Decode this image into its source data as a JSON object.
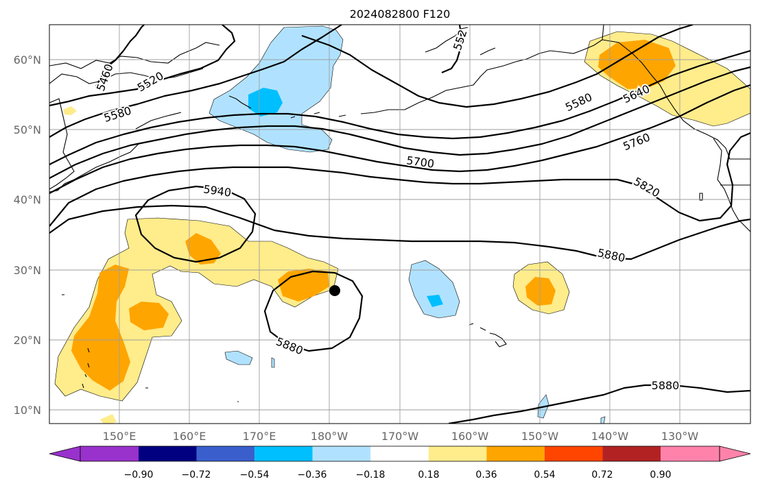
{
  "title": "2024082800 F120",
  "lat_labels": [
    "60°N",
    "50°N",
    "40°N",
    "30°N",
    "20°N",
    "10°N"
  ],
  "lon_labels": [
    "150°E",
    "160°E",
    "170°E",
    "180°W",
    "170°W",
    "160°W",
    "150°W",
    "140°W",
    "130°W"
  ],
  "contour_labels": [
    "5460",
    "5520",
    "5580",
    "5580",
    "5640",
    "5700",
    "5760",
    "5820",
    "5880",
    "5940",
    "5880",
    "5880",
    "552"
  ],
  "colorbar": {
    "ticks": [
      "−0.90",
      "−0.72",
      "−0.54",
      "−0.36",
      "−0.18",
      "0.18",
      "0.36",
      "0.54",
      "0.72",
      "0.90"
    ],
    "colors": [
      "#9932cc",
      "#000080",
      "#3a5fcd",
      "#00bfff",
      "#b0e2ff",
      "#ffffff",
      "#ffec8b",
      "#ffa500",
      "#ff4500",
      "#b22222",
      "#ff82ab"
    ]
  },
  "colors": {
    "light_yellow": "#ffec8b",
    "orange": "#ffa500",
    "light_blue": "#b0e2ff",
    "deep_sky_blue": "#00bfff"
  }
}
